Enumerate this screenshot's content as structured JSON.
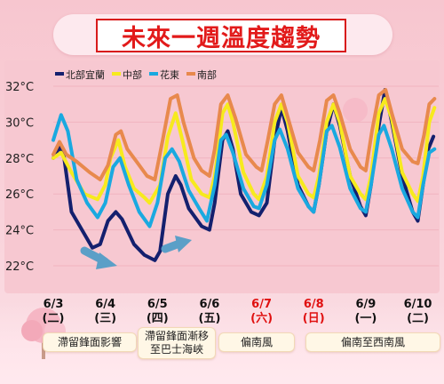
{
  "title": "未來一週溫度趨勢",
  "chart_data": {
    "type": "line",
    "ylim": [
      21,
      33
    ],
    "yticks": [
      {
        "value": 22,
        "label": "22°C"
      },
      {
        "value": 24,
        "label": "24°C"
      },
      {
        "value": 26,
        "label": "26°C"
      },
      {
        "value": 28,
        "label": "28°C"
      },
      {
        "value": 30,
        "label": "30°C"
      },
      {
        "value": 32,
        "label": "32°C"
      }
    ],
    "x_range": [
      0,
      7.4
    ],
    "days": [
      {
        "date": "6/3",
        "weekday": "(二)",
        "x": 0,
        "color": "#111111"
      },
      {
        "date": "6/4",
        "weekday": "(三)",
        "x": 1,
        "color": "#111111"
      },
      {
        "date": "6/5",
        "weekday": "(四)",
        "x": 2,
        "color": "#111111"
      },
      {
        "date": "6/6",
        "weekday": "(五)",
        "x": 3,
        "color": "#111111"
      },
      {
        "date": "6/7",
        "weekday": "(六)",
        "x": 4,
        "color": "#e01010"
      },
      {
        "date": "6/8",
        "weekday": "(日)",
        "x": 5,
        "color": "#e01010"
      },
      {
        "date": "6/9",
        "weekday": "(一)",
        "x": 6,
        "color": "#111111"
      },
      {
        "date": "6/10",
        "weekday": "(二)",
        "x": 7,
        "color": "#111111"
      }
    ],
    "series": [
      {
        "name": "北部宜蘭",
        "color": "#14206e",
        "points": [
          [
            0.0,
            28.0
          ],
          [
            0.12,
            28.6
          ],
          [
            0.2,
            28.2
          ],
          [
            0.35,
            25.0
          ],
          [
            0.55,
            24.0
          ],
          [
            0.75,
            23.0
          ],
          [
            0.9,
            23.2
          ],
          [
            1.05,
            24.5
          ],
          [
            1.2,
            25.0
          ],
          [
            1.32,
            24.6
          ],
          [
            1.55,
            23.2
          ],
          [
            1.75,
            22.6
          ],
          [
            1.95,
            22.3
          ],
          [
            2.05,
            22.8
          ],
          [
            2.2,
            26.0
          ],
          [
            2.35,
            27.0
          ],
          [
            2.45,
            26.5
          ],
          [
            2.6,
            25.2
          ],
          [
            2.85,
            24.2
          ],
          [
            3.0,
            24.0
          ],
          [
            3.1,
            25.5
          ],
          [
            3.25,
            29.0
          ],
          [
            3.35,
            29.5
          ],
          [
            3.45,
            28.5
          ],
          [
            3.6,
            26.0
          ],
          [
            3.8,
            25.0
          ],
          [
            3.95,
            24.8
          ],
          [
            4.1,
            25.5
          ],
          [
            4.25,
            29.0
          ],
          [
            4.38,
            30.8
          ],
          [
            4.5,
            29.5
          ],
          [
            4.7,
            26.5
          ],
          [
            4.9,
            25.3
          ],
          [
            5.0,
            25.0
          ],
          [
            5.1,
            26.5
          ],
          [
            5.25,
            29.5
          ],
          [
            5.38,
            31.0
          ],
          [
            5.5,
            29.8
          ],
          [
            5.7,
            27.0
          ],
          [
            5.9,
            25.3
          ],
          [
            6.0,
            24.8
          ],
          [
            6.1,
            26.5
          ],
          [
            6.25,
            29.8
          ],
          [
            6.37,
            31.8
          ],
          [
            6.5,
            30.0
          ],
          [
            6.7,
            27.0
          ],
          [
            6.9,
            25.0
          ],
          [
            7.0,
            24.5
          ],
          [
            7.1,
            26.5
          ],
          [
            7.2,
            28.5
          ],
          [
            7.3,
            29.2
          ]
        ]
      },
      {
        "name": "中部",
        "color": "#f7ea1d",
        "points": [
          [
            0.0,
            28.0
          ],
          [
            0.15,
            28.3
          ],
          [
            0.35,
            27.2
          ],
          [
            0.6,
            26.0
          ],
          [
            0.85,
            25.7
          ],
          [
            1.0,
            26.5
          ],
          [
            1.1,
            28.0
          ],
          [
            1.25,
            29.0
          ],
          [
            1.38,
            27.5
          ],
          [
            1.55,
            26.3
          ],
          [
            1.75,
            25.8
          ],
          [
            1.85,
            25.5
          ],
          [
            2.05,
            26.5
          ],
          [
            2.2,
            29.2
          ],
          [
            2.35,
            30.5
          ],
          [
            2.48,
            29.0
          ],
          [
            2.65,
            26.8
          ],
          [
            2.85,
            26.0
          ],
          [
            3.0,
            25.8
          ],
          [
            3.1,
            27.0
          ],
          [
            3.25,
            30.5
          ],
          [
            3.35,
            31.0
          ],
          [
            3.45,
            30.0
          ],
          [
            3.65,
            27.2
          ],
          [
            3.85,
            26.0
          ],
          [
            3.95,
            25.7
          ],
          [
            4.1,
            27.0
          ],
          [
            4.25,
            30.0
          ],
          [
            4.38,
            31.0
          ],
          [
            4.5,
            30.0
          ],
          [
            4.7,
            27.0
          ],
          [
            4.9,
            26.0
          ],
          [
            5.0,
            25.8
          ],
          [
            5.1,
            27.0
          ],
          [
            5.25,
            30.0
          ],
          [
            5.38,
            31.0
          ],
          [
            5.5,
            30.0
          ],
          [
            5.7,
            27.0
          ],
          [
            5.9,
            26.0
          ],
          [
            6.0,
            25.7
          ],
          [
            6.1,
            27.0
          ],
          [
            6.25,
            30.5
          ],
          [
            6.37,
            31.3
          ],
          [
            6.5,
            30.2
          ],
          [
            6.7,
            27.2
          ],
          [
            6.9,
            26.0
          ],
          [
            7.0,
            25.6
          ],
          [
            7.1,
            27.0
          ],
          [
            7.22,
            30.0
          ],
          [
            7.32,
            30.8
          ]
        ]
      },
      {
        "name": "花東",
        "color": "#1aa9e0",
        "points": [
          [
            0.0,
            29.0
          ],
          [
            0.15,
            30.4
          ],
          [
            0.28,
            29.5
          ],
          [
            0.45,
            26.8
          ],
          [
            0.65,
            25.5
          ],
          [
            0.85,
            24.7
          ],
          [
            1.0,
            25.5
          ],
          [
            1.15,
            27.5
          ],
          [
            1.28,
            28.0
          ],
          [
            1.45,
            26.5
          ],
          [
            1.65,
            25.0
          ],
          [
            1.85,
            24.2
          ],
          [
            2.0,
            25.5
          ],
          [
            2.15,
            28.0
          ],
          [
            2.28,
            28.5
          ],
          [
            2.42,
            27.8
          ],
          [
            2.6,
            26.2
          ],
          [
            2.8,
            25.2
          ],
          [
            2.95,
            24.5
          ],
          [
            3.1,
            26.5
          ],
          [
            3.22,
            29.0
          ],
          [
            3.32,
            29.3
          ],
          [
            3.45,
            28.3
          ],
          [
            3.65,
            26.3
          ],
          [
            3.85,
            25.3
          ],
          [
            3.95,
            25.2
          ],
          [
            4.1,
            26.5
          ],
          [
            4.25,
            29.0
          ],
          [
            4.35,
            29.6
          ],
          [
            4.5,
            28.5
          ],
          [
            4.7,
            26.3
          ],
          [
            4.9,
            25.3
          ],
          [
            5.0,
            25.0
          ],
          [
            5.1,
            26.5
          ],
          [
            5.25,
            29.5
          ],
          [
            5.35,
            29.8
          ],
          [
            5.5,
            28.6
          ],
          [
            5.7,
            26.3
          ],
          [
            5.9,
            25.2
          ],
          [
            6.0,
            25.0
          ],
          [
            6.1,
            26.5
          ],
          [
            6.25,
            29.3
          ],
          [
            6.35,
            29.8
          ],
          [
            6.5,
            28.5
          ],
          [
            6.7,
            26.3
          ],
          [
            6.9,
            25.0
          ],
          [
            7.0,
            24.7
          ],
          [
            7.1,
            26.5
          ],
          [
            7.22,
            28.3
          ],
          [
            7.32,
            28.5
          ]
        ]
      },
      {
        "name": "南部",
        "color": "#e8894d",
        "points": [
          [
            0.0,
            28.2
          ],
          [
            0.12,
            28.9
          ],
          [
            0.25,
            28.2
          ],
          [
            0.45,
            27.8
          ],
          [
            0.7,
            27.2
          ],
          [
            0.9,
            26.8
          ],
          [
            1.05,
            27.6
          ],
          [
            1.2,
            29.3
          ],
          [
            1.3,
            29.5
          ],
          [
            1.42,
            28.5
          ],
          [
            1.6,
            27.8
          ],
          [
            1.8,
            27.0
          ],
          [
            1.95,
            26.8
          ],
          [
            2.1,
            29.0
          ],
          [
            2.25,
            31.3
          ],
          [
            2.38,
            31.5
          ],
          [
            2.5,
            30.0
          ],
          [
            2.7,
            28.0
          ],
          [
            2.85,
            27.3
          ],
          [
            3.0,
            27.0
          ],
          [
            3.1,
            28.5
          ],
          [
            3.22,
            31.0
          ],
          [
            3.35,
            31.5
          ],
          [
            3.5,
            30.2
          ],
          [
            3.7,
            28.2
          ],
          [
            3.9,
            27.5
          ],
          [
            4.0,
            27.3
          ],
          [
            4.12,
            29.0
          ],
          [
            4.25,
            31.0
          ],
          [
            4.38,
            31.5
          ],
          [
            4.5,
            30.3
          ],
          [
            4.7,
            28.3
          ],
          [
            4.9,
            27.5
          ],
          [
            5.0,
            27.3
          ],
          [
            5.12,
            29.0
          ],
          [
            5.25,
            31.2
          ],
          [
            5.38,
            31.5
          ],
          [
            5.5,
            30.5
          ],
          [
            5.7,
            28.5
          ],
          [
            5.9,
            27.5
          ],
          [
            6.0,
            27.3
          ],
          [
            6.12,
            29.5
          ],
          [
            6.25,
            31.5
          ],
          [
            6.38,
            31.8
          ],
          [
            6.5,
            30.5
          ],
          [
            6.7,
            28.5
          ],
          [
            6.9,
            27.8
          ],
          [
            7.0,
            27.7
          ],
          [
            7.12,
            29.3
          ],
          [
            7.22,
            31.0
          ],
          [
            7.32,
            31.3
          ]
        ]
      }
    ]
  },
  "notes": {
    "one": "滯留鋒面影響",
    "two_line1": "滯留鋒面漸移",
    "two_line2": "至巴士海峽",
    "three": "偏南風",
    "four": "偏南至西南風"
  }
}
